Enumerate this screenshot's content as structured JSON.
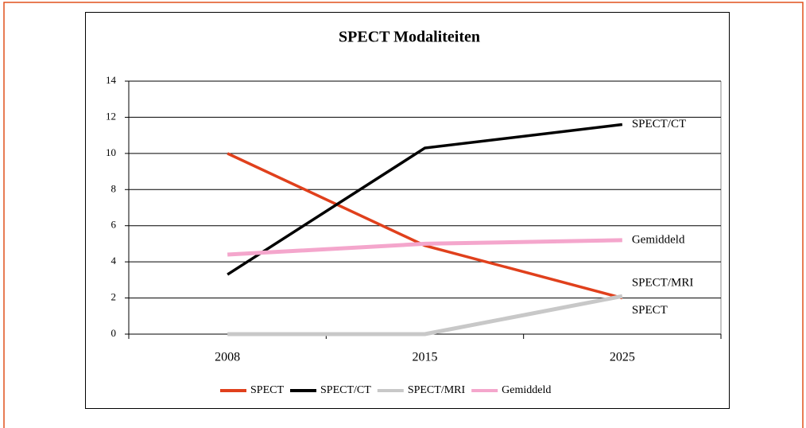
{
  "chart_data": {
    "type": "line",
    "title": "SPECT Modaliteiten",
    "categories": [
      "2008",
      "2015",
      "2025"
    ],
    "series": [
      {
        "name": "SPECT",
        "color": "#e0401c",
        "values": [
          10,
          4.9,
          2
        ]
      },
      {
        "name": "SPECT/CT",
        "color": "#000000",
        "values": [
          3.3,
          10.3,
          11.6
        ]
      },
      {
        "name": "SPECT/MRI",
        "color": "#c8c8c8",
        "values": [
          0,
          0,
          2.1
        ]
      },
      {
        "name": "Gemiddeld",
        "color": "#f4a6cc",
        "values": [
          4.4,
          5,
          5.2
        ]
      }
    ],
    "ylim": [
      0,
      14
    ],
    "yticks": [
      0,
      2,
      4,
      6,
      8,
      10,
      12,
      14
    ],
    "grid": true,
    "legend": "bottom"
  }
}
